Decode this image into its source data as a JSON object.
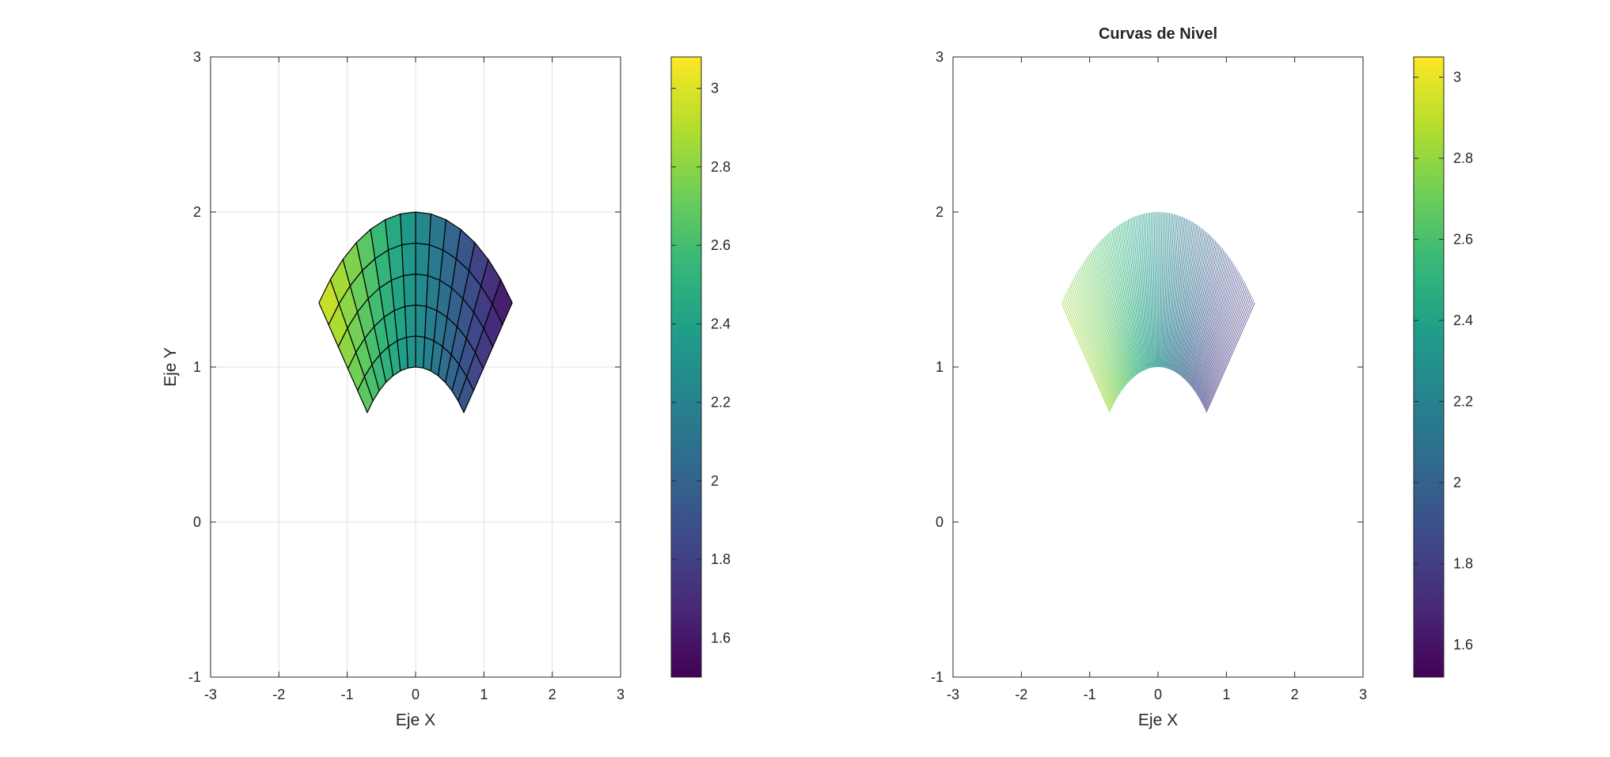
{
  "chart_data": [
    {
      "type": "surface",
      "title": "",
      "xlabel": "Eje X",
      "ylabel": "Eje Y",
      "xlim": [
        -3,
        3
      ],
      "ylim": [
        -1,
        3
      ],
      "xticks": [
        "-3",
        "-2",
        "-1",
        "0",
        "1",
        "2",
        "3"
      ],
      "yticks": [
        "-1",
        "0",
        "1",
        "2",
        "3"
      ],
      "grid": true,
      "mesh": {
        "radial_from": 1,
        "radial_to": 2,
        "radial_steps": 5,
        "angle_from_deg": 45,
        "angle_to_deg": 135,
        "angle_steps": 14
      },
      "colorbar": {
        "colormap": "viridis",
        "clim": [
          1.5,
          3.08
        ],
        "ticks": [
          "1.6",
          "1.8",
          "2",
          "2.2",
          "2.4",
          "2.6",
          "2.8",
          "3"
        ]
      }
    },
    {
      "type": "contour",
      "title": "Curvas de Nivel",
      "xlabel": "Eje X",
      "ylabel": "",
      "xlim": [
        -3,
        3
      ],
      "ylim": [
        -1,
        3
      ],
      "xticks": [
        "-3",
        "-2",
        "-1",
        "0",
        "1",
        "2",
        "3"
      ],
      "yticks": [
        "-1",
        "0",
        "1",
        "2",
        "3"
      ],
      "grid": false,
      "levels": {
        "angle_from_deg": 45,
        "angle_to_deg": 135,
        "count": 140,
        "radial_from": 1,
        "radial_to": 2
      },
      "colorbar": {
        "colormap": "viridis",
        "clim": [
          1.52,
          3.05
        ],
        "ticks": [
          "1.6",
          "1.8",
          "2",
          "2.2",
          "2.4",
          "2.6",
          "2.8",
          "3"
        ]
      }
    }
  ],
  "colors": {
    "viridis": [
      "#440154",
      "#482878",
      "#3e4a89",
      "#31688e",
      "#26828e",
      "#1f9e89",
      "#35b779",
      "#6ece58",
      "#b5de2b",
      "#fde725"
    ],
    "axis": "#262626",
    "grid": "#e0e0e0",
    "mesh_edge": "#000000"
  }
}
